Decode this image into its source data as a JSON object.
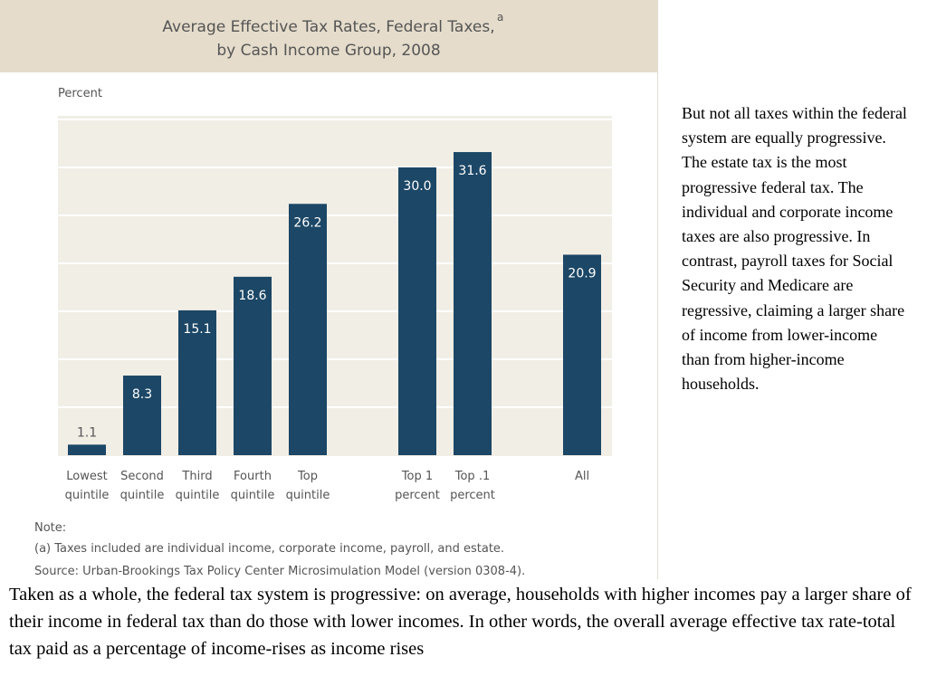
{
  "chart_data": {
    "type": "bar",
    "title": "Average Effective Tax Rates, Federal Taxes,",
    "title_superscript": "a",
    "subtitle": "by Cash Income Group, 2008",
    "ylabel": "Percent",
    "xlabel": "",
    "ylim": [
      0,
      35
    ],
    "grid": true,
    "categories": [
      "Lowest\nquintile",
      "Second\nquintile",
      "Third\nquintile",
      "Fourth\nquintile",
      "Top\nquintile",
      "Top 1\npercent",
      "Top .1\npercent",
      "All"
    ],
    "values": [
      1.1,
      8.3,
      15.1,
      18.6,
      26.2,
      30.0,
      31.6,
      20.9
    ],
    "value_labels": [
      "1.1",
      "8.3",
      "15.1",
      "18.6",
      "26.2",
      "30.0",
      "31.6",
      "20.9"
    ],
    "bar_color": "#1c4766",
    "notes": {
      "heading": "Note:",
      "a": "(a) Taxes included are individual income, corporate income, payroll, and estate.",
      "source": "Source:  Urban-Brookings Tax Policy Center Microsimulation Model (version 0308-4)."
    }
  },
  "side_text": " But not all taxes within the federal system are equally progressive. The estate tax is the most progressive federal tax. The individual and corporate income taxes are also progressive. In contrast, payroll taxes for Social Security and Medicare are regressive, claiming a larger share of income from lower-income than from higher-income households.",
  "bottom_text": "Taken as a whole, the federal tax system is progressive: on average, households with higher incomes pay a larger share of their income in federal tax than do those with lower incomes. In other words, the overall average effective tax rate-total tax paid as a percentage of income-rises as income rises"
}
